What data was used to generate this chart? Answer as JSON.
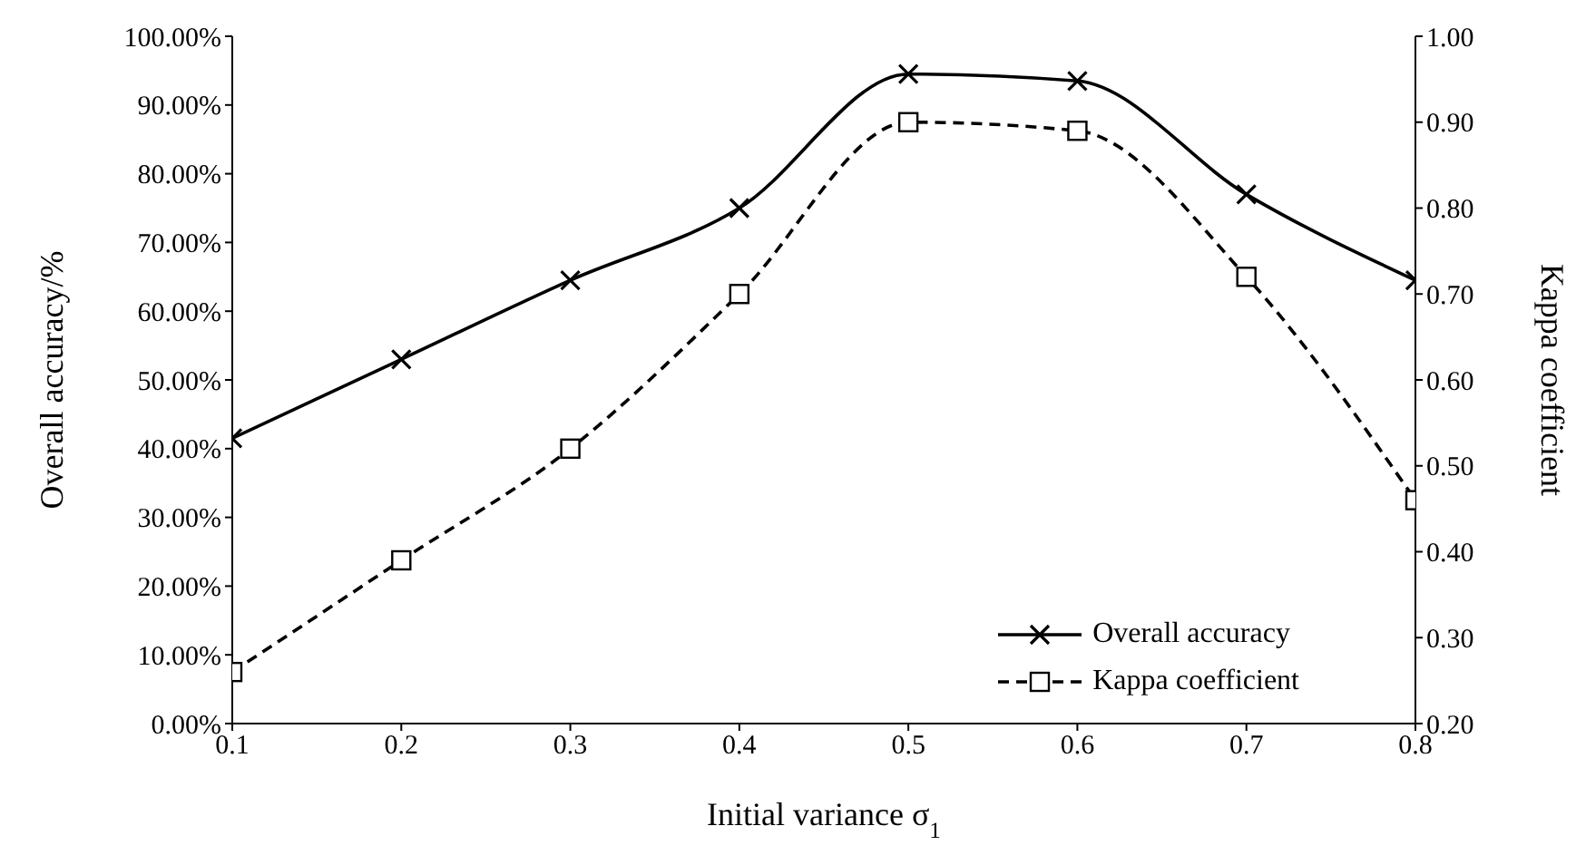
{
  "chart_data": {
    "type": "line",
    "xlabel": "Initial variance σ$_{1}$",
    "ylabel": "Overall accuracy/%",
    "y2label": "Kappa coefficient",
    "x": [
      0.1,
      0.2,
      0.3,
      0.4,
      0.5,
      0.6,
      0.7,
      0.8
    ],
    "xlim": [
      0.1,
      0.8
    ],
    "xticks": [
      0.1,
      0.2,
      0.3,
      0.4,
      0.5,
      0.6,
      0.7,
      0.8
    ],
    "ylim": [
      0,
      100
    ],
    "yticks": [
      {
        "value": 0,
        "label": "0.00%"
      },
      {
        "value": 10,
        "label": "10.00%"
      },
      {
        "value": 20,
        "label": "20.00%"
      },
      {
        "value": 30,
        "label": "30.00%"
      },
      {
        "value": 40,
        "label": "40.00%"
      },
      {
        "value": 50,
        "label": "50.00%"
      },
      {
        "value": 60,
        "label": "60.00%"
      },
      {
        "value": 70,
        "label": "70.00%"
      },
      {
        "value": 80,
        "label": "80.00%"
      },
      {
        "value": 90,
        "label": "90.00%"
      },
      {
        "value": 100,
        "label": "100.00%"
      }
    ],
    "y2lim": [
      0.2,
      1
    ],
    "y2ticks": [
      {
        "value": 0.2,
        "label": "0.20"
      },
      {
        "value": 0.3,
        "label": "0.30"
      },
      {
        "value": 0.4,
        "label": "0.40"
      },
      {
        "value": 0.5,
        "label": "0.50"
      },
      {
        "value": 0.6,
        "label": "0.60"
      },
      {
        "value": 0.7,
        "label": "0.70"
      },
      {
        "value": 0.8,
        "label": "0.80"
      },
      {
        "value": 0.9,
        "label": "0.90"
      },
      {
        "value": 1,
        "label": "1.00"
      }
    ],
    "series": [
      {
        "name": "Overall accuracy",
        "color": "#000000",
        "marker": "cross",
        "line_style": "solid",
        "values": [
          41.5,
          53,
          64.5,
          75,
          94.5,
          93.5,
          77,
          64.5
        ]
      },
      {
        "name": "Kappa coefficient",
        "color": "#000000",
        "marker": "square",
        "line_style": "dashed",
        "axis": "y2",
        "values": [
          0.26,
          0.39,
          0.52,
          0.7,
          0.9,
          0.89,
          0.72,
          0.46
        ]
      }
    ],
    "legend": "bottom right"
  }
}
